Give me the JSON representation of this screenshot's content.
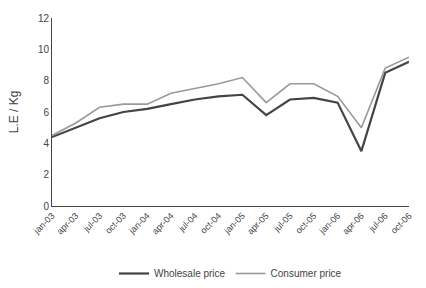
{
  "chart_data": {
    "type": "line",
    "categories": [
      "jan-03",
      "apr-03",
      "jul-03",
      "oct-03",
      "jan-04",
      "apr-04",
      "jul-04",
      "oct-04",
      "jan-05",
      "apr-05",
      "jul-05",
      "oct-05",
      "jan-06",
      "apr-06",
      "jul-06",
      "oct-06"
    ],
    "series": [
      {
        "name": "Wholesale price",
        "color": "#444444",
        "values": [
          4.4,
          5.0,
          5.6,
          6.0,
          6.2,
          6.5,
          6.8,
          7.0,
          7.1,
          5.8,
          6.8,
          6.9,
          6.6,
          3.5,
          8.5,
          9.2
        ]
      },
      {
        "name": "Consumer price",
        "color": "#999999",
        "values": [
          4.5,
          5.3,
          6.3,
          6.5,
          6.5,
          7.2,
          7.5,
          7.8,
          8.2,
          6.6,
          7.8,
          7.8,
          7.0,
          5.0,
          8.8,
          9.5
        ]
      }
    ],
    "ylabel": "L.E / Kg",
    "ylim": [
      0,
      12
    ],
    "yticks": [
      0,
      2,
      4,
      6,
      8,
      10,
      12
    ],
    "grid": false,
    "legend": "bottom"
  }
}
